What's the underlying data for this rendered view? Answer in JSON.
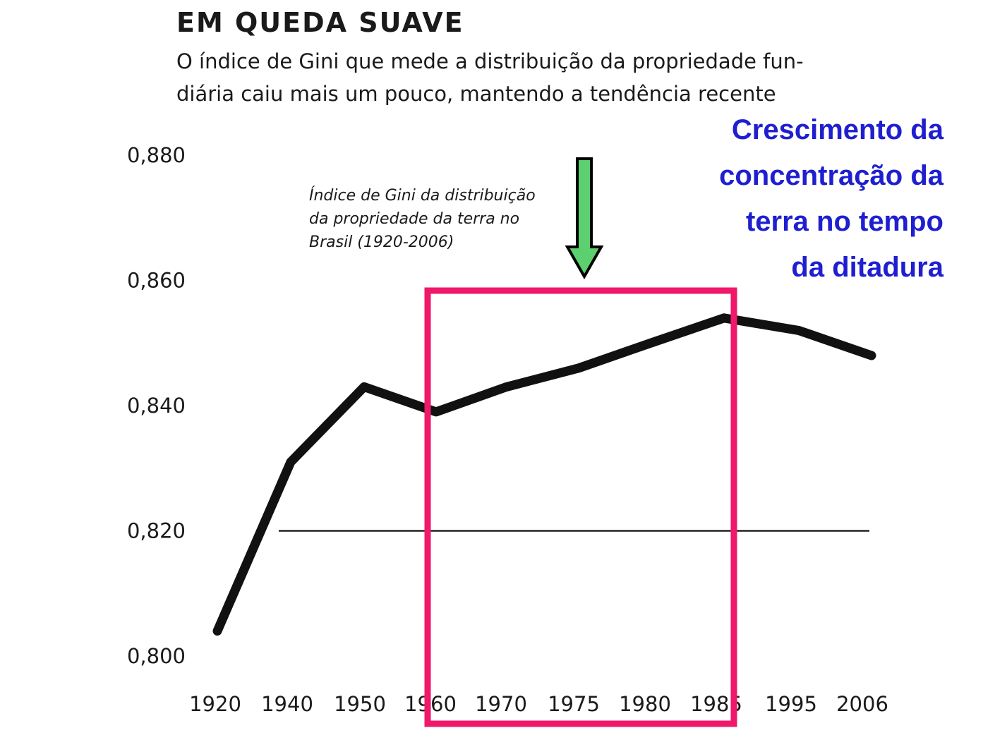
{
  "header": {
    "title": "EM QUEDA SUAVE",
    "subtitle_line1": "O índice de Gini que mede a distribuição da propriedade fun-",
    "subtitle_line2": "diária caiu mais um pouco, mantendo a tendência recente"
  },
  "annotation": {
    "lines": [
      "Crescimento da",
      "concentração da",
      "terra no tempo",
      "da ditadura"
    ],
    "color": "#1f1fd0"
  },
  "chart_data": {
    "type": "line",
    "legend_lines": [
      "Índice de Gini da distribuição",
      "da propriedade da terra no",
      "Brasil (1920-2006)"
    ],
    "categories": [
      "1920",
      "1940",
      "1950",
      "1960",
      "1970",
      "1975",
      "1980",
      "1985",
      "1995",
      "2006"
    ],
    "series": [
      {
        "values": [
          0.804,
          0.831,
          0.843,
          0.839,
          0.843,
          0.846,
          0.85,
          0.854,
          0.852,
          0.848
        ]
      }
    ],
    "yticks": [
      "0,880",
      "0,860",
      "0,840",
      "0,820",
      "0,800"
    ],
    "ytick_values": [
      0.88,
      0.86,
      0.84,
      0.82,
      0.8
    ],
    "ylim": [
      0.8,
      0.88
    ],
    "reference_line": 0.82,
    "highlight_range": [
      "1960",
      "1985"
    ],
    "highlight_color": "#f0186a",
    "arrow_color": "#5ccf6e"
  }
}
